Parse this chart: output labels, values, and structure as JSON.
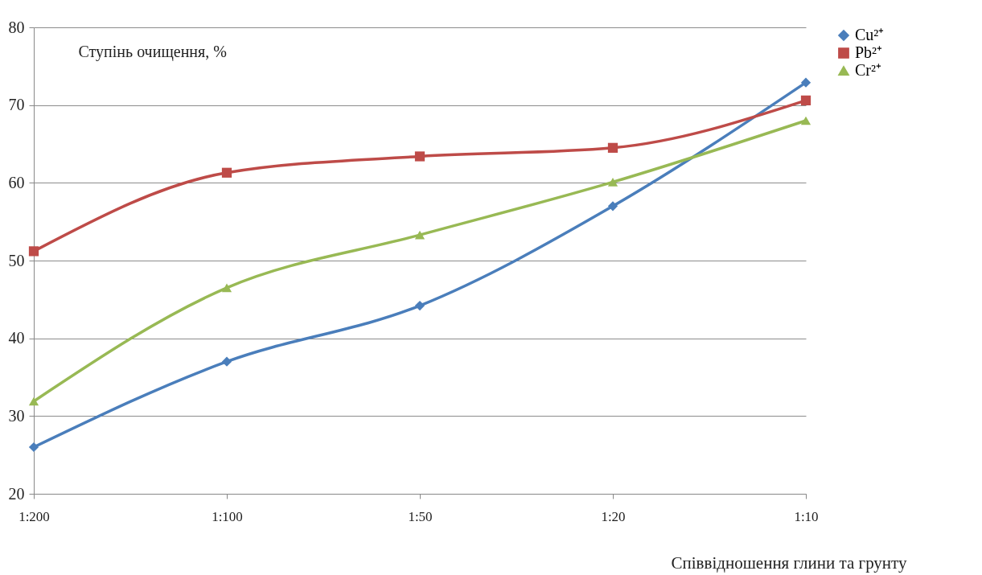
{
  "chart_data": {
    "type": "line",
    "xlabel": "Співвідношення глини та грунту",
    "ylabel": "Ступінь очищення, %",
    "categories": [
      "1:200",
      "1:100",
      "1:50",
      "1:20",
      "1:10"
    ],
    "series": [
      {
        "name": "Cu²⁺",
        "color": "#4a7ebb",
        "marker": "diamond",
        "values": [
          26,
          37,
          44.2,
          57,
          72.9
        ]
      },
      {
        "name": "Pb²⁺",
        "color": "#be4b48",
        "marker": "square",
        "values": [
          51.2,
          61.3,
          63.4,
          64.5,
          70.6
        ]
      },
      {
        "name": "Cr²⁺",
        "color": "#98b954",
        "marker": "triangle",
        "values": [
          31.9,
          46.5,
          53.3,
          60.1,
          68
        ]
      }
    ],
    "ylim": [
      20,
      80
    ],
    "yticks": [
      20,
      30,
      40,
      50,
      60,
      70,
      80
    ],
    "grid": "y",
    "legend": "right"
  }
}
